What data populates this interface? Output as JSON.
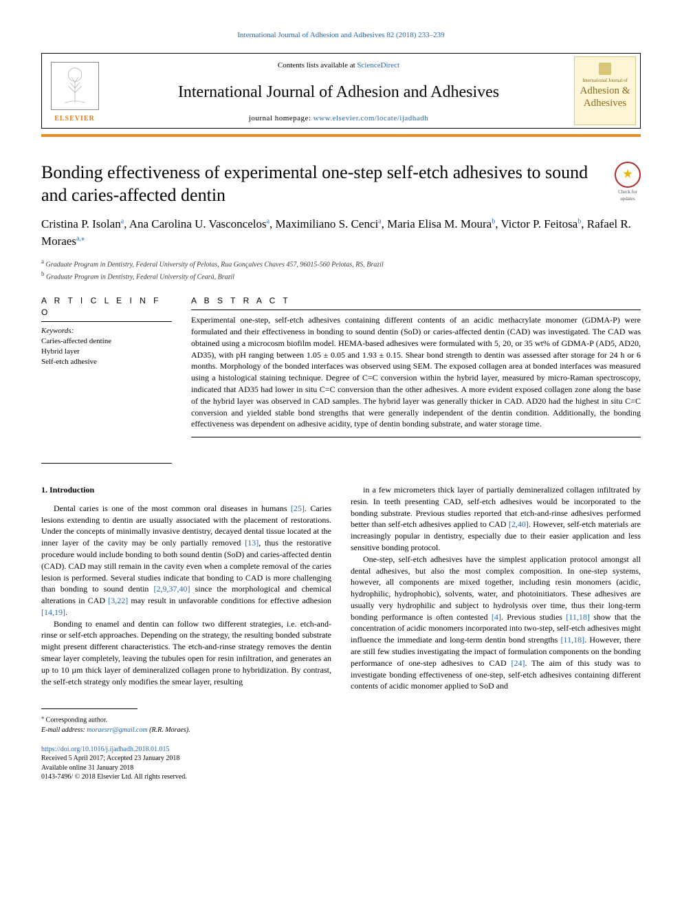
{
  "running_head": "International Journal of Adhesion and Adhesives 82 (2018) 233–239",
  "masthead": {
    "contents_prefix": "Contents lists available at ",
    "contents_link": "ScienceDirect",
    "journal_name": "International Journal of Adhesion and Adhesives",
    "homepage_prefix": "journal homepage: ",
    "homepage_link": "www.elsevier.com/locate/ijadhadh",
    "publisher": "ELSEVIER",
    "cover_small": "International Journal of",
    "cover_main1": "Adhesion &",
    "cover_main2": "Adhesives"
  },
  "title": "Bonding effectiveness of experimental one-step self-etch adhesives to sound and caries-affected dentin",
  "check_updates": "Check for updates",
  "authors_html": "Cristina P. Isolan<sup>a</sup>, Ana Carolina U. Vasconcelos<sup>a</sup>, Maximiliano S. Cenci<sup>a</sup>, Maria Elisa M. Moura<sup>b</sup>, Victor P. Feitosa<sup>b</sup>, Rafael R. Moraes<sup>a,</sup><sup class=\"star\">⁎</sup>",
  "affiliations": [
    {
      "sup": "a",
      "text": "Graduate Program in Dentistry, Federal University of Pelotas, Rua Gonçalves Chaves 457, 96015-560 Pelotas, RS, Brazil"
    },
    {
      "sup": "b",
      "text": "Graduate Program in Dentistry, Federal University of Ceará, Brazil"
    }
  ],
  "article_info_head": "A R T I C L E  I N F O",
  "abstract_head": "A B S T R A C T",
  "keywords_label": "Keywords:",
  "keywords": [
    "Caries-affected dentine",
    "Hybrid layer",
    "Self-etch adhesive"
  ],
  "abstract": "Experimental one-step, self-etch adhesives containing different contents of an acidic methacrylate monomer (GDMA-P) were formulated and their effectiveness in bonding to sound dentin (SoD) or caries-affected dentin (CAD) was investigated. The CAD was obtained using a microcosm biofilm model. HEMA-based adhesives were formulated with 5, 20, or 35 wt% of GDMA-P (AD5, AD20, AD35), with pH ranging between 1.05 ± 0.05 and 1.93 ± 0.15. Shear bond strength to dentin was assessed after storage for 24 h or 6 months. Morphology of the bonded interfaces was observed using SEM. The exposed collagen area at bonded interfaces was measured using a histological staining technique. Degree of C=C conversion within the hybrid layer, measured by micro-Raman spectroscopy, indicated that AD35 had lower in situ C=C conversion than the other adhesives. A more evident exposed collagen zone along the base of the hybrid layer was observed in CAD samples. The hybrid layer was generally thicker in CAD. AD20 had the highest in situ C=C conversion and yielded stable bond strengths that were generally independent of the dentin condition. Additionally, the bonding effectiveness was dependent on adhesive acidity, type of dentin bonding substrate, and water storage time.",
  "intro_head": "1. Introduction",
  "intro_p1": "Dental caries is one of the most common oral diseases in humans <span class=\"ref-link\">[25]</span>. Caries lesions extending to dentin are usually associated with the placement of restorations. Under the concepts of minimally invasive dentistry, decayed dental tissue located at the inner layer of the cavity may be only partially removed <span class=\"ref-link\">[13]</span>, thus the restorative procedure would include bonding to both sound dentin (SoD) and caries-affected dentin (CAD). CAD may still remain in the cavity even when a complete removal of the caries lesion is performed. Several studies indicate that bonding to CAD is more challenging than bonding to sound dentin <span class=\"ref-link\">[2,9,37,40]</span> since the morphological and chemical alterations in CAD <span class=\"ref-link\">[3,22]</span> may result in unfavorable conditions for effective adhesion <span class=\"ref-link\">[14,19]</span>.",
  "intro_p2": "Bonding to enamel and dentin can follow two different strategies, i.e. etch-and-rinse or self-etch approaches. Depending on the strategy, the resulting bonded substrate might present different characteristics. The etch-and-rinse strategy removes the dentin smear layer completely, leaving the tubules open for resin infiltration, and generates an up to 10 µm thick layer of demineralized collagen prone to hybridization. By contrast, the self-etch strategy only modifies the smear layer, resulting",
  "intro_p3": "in a few micrometers thick layer of partially demineralized collagen infiltrated by resin. In teeth presenting CAD, self-etch adhesives would be incorporated to the bonding substrate. Previous studies reported that etch-and-rinse adhesives performed better than self-etch adhesives applied to CAD <span class=\"ref-link\">[2,40]</span>. However, self-etch materials are increasingly popular in dentistry, especially due to their easier application and less sensitive bonding protocol.",
  "intro_p4": "One-step, self-etch adhesives have the simplest application protocol amongst all dental adhesives, but also the most complex composition. In one-step systems, however, all components are mixed together, including resin monomers (acidic, hydrophilic, hydrophobic), solvents, water, and photoinitiators. These adhesives are usually very hydrophilic and subject to hydrolysis over time, thus their long-term bonding performance is often contested <span class=\"ref-link\">[4]</span>. Previous studies <span class=\"ref-link\">[11,18]</span> show that the concentration of acidic monomers incorporated into two-step, self-etch adhesives might influence the immediate and long-term dentin bond strengths <span class=\"ref-link\">[11,18]</span>. However, there are still few studies investigating the impact of formulation components on the bonding performance of one-step adhesives to CAD <span class=\"ref-link\">[24]</span>. The aim of this study was to investigate bonding effectiveness of one-step, self-etch adhesives containing different contents of acidic monomer applied to SoD and",
  "correspondence": {
    "star": "⁎",
    "label": "Corresponding author.",
    "email_label": "E-mail address:",
    "email": "moraesrr@gmail.com",
    "email_suffix": "(R.R. Moraes)."
  },
  "doi": {
    "url": "https://doi.org/10.1016/j.ijadhadh.2018.01.015",
    "received": "Received 5 April 2017; Accepted 23 January 2018",
    "available": "Available online 31 January 2018",
    "issn_copy": "0143-7496/ © 2018 Elsevier Ltd. All rights reserved."
  },
  "colors": {
    "link": "#2566b0",
    "orange": "#f08a1d",
    "elsevier": "#e67817",
    "cover_bg": "#fff6d8",
    "cover_text": "#8a6a1a"
  }
}
